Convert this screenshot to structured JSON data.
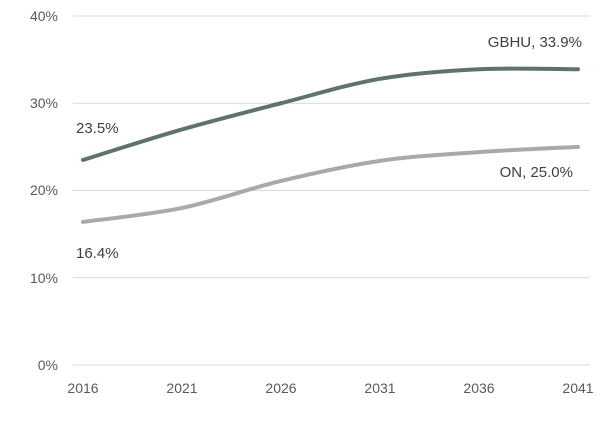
{
  "chart_data": {
    "type": "line",
    "title": "",
    "xlabel": "",
    "ylabel": "",
    "x": [
      2016,
      2021,
      2026,
      2031,
      2036,
      2041
    ],
    "x_tick_labels": [
      "2016",
      "2021",
      "2026",
      "2031",
      "2036",
      "2041"
    ],
    "y_tick_labels": [
      "0%",
      "10%",
      "20%",
      "30%",
      "40%"
    ],
    "y_ticks": [
      0,
      10,
      20,
      30,
      40
    ],
    "ylim": [
      0,
      40
    ],
    "y_unit": "%",
    "grid": "horizontal",
    "gridline_color": "#d9d9d9",
    "legend_position": "none",
    "series": [
      {
        "name": "GBHU",
        "color": "#5e7370",
        "values": [
          23.5,
          27.0,
          30.0,
          32.8,
          33.9,
          33.9
        ],
        "start_label": "23.5%",
        "end_label": "GBHU, 33.9%"
      },
      {
        "name": "ON",
        "color": "#a9a9a9",
        "values": [
          16.4,
          18.0,
          21.1,
          23.4,
          24.4,
          25.0
        ],
        "start_label": "16.4%",
        "end_label": "ON, 25.0%"
      }
    ],
    "annotation_text_color": "#404040",
    "axis_text_color": "#595959"
  }
}
